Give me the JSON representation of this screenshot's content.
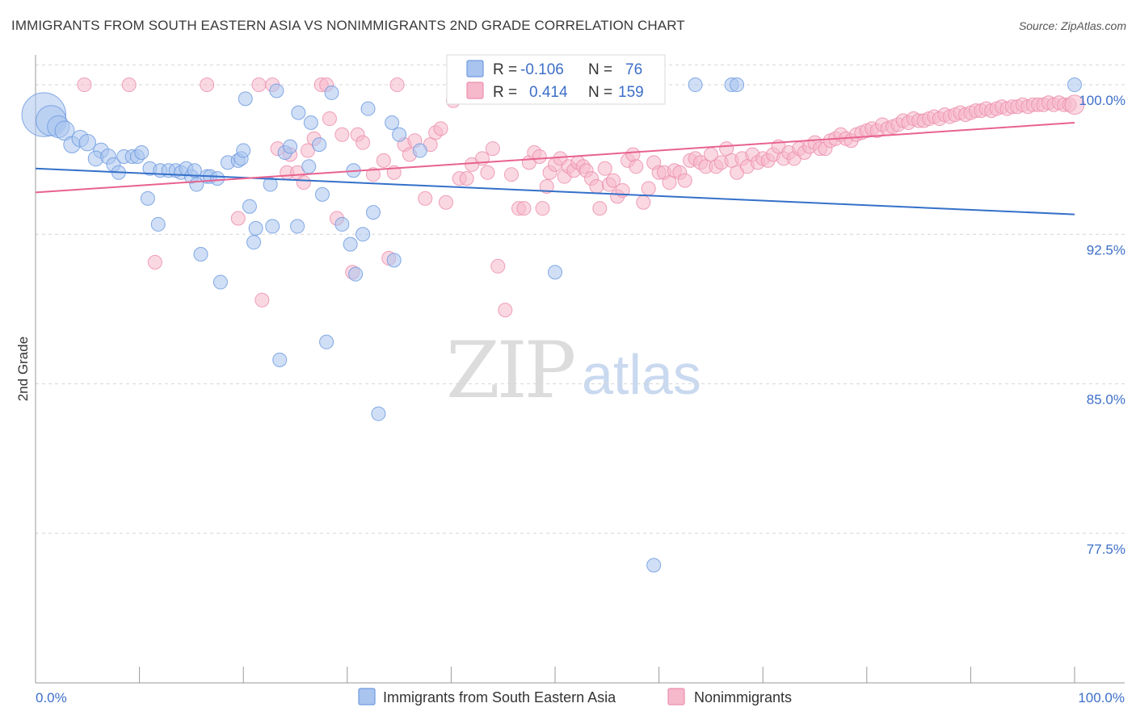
{
  "header": {
    "title": "IMMIGRANTS FROM SOUTH EASTERN ASIA VS NONIMMIGRANTS 2ND GRADE CORRELATION CHART",
    "source": "Source: ZipAtlas.com"
  },
  "watermark": {
    "part1": "ZIP",
    "part2": "atlas"
  },
  "stats": {
    "series1": {
      "r_label": "R =",
      "r_value": "-0.106",
      "n_label": "N =",
      "n_value": "76"
    },
    "series2": {
      "r_label": "R =",
      "r_value": "0.414",
      "n_label": "N =",
      "n_value": "159"
    }
  },
  "colors": {
    "series1_fill": "#a9c4ef",
    "series1_stroke": "#6f9be0",
    "series1_line": "#3470c9",
    "series2_fill": "#f6b8cb",
    "series2_stroke": "#ec8fae",
    "series2_line": "#e8628f",
    "tick_text": "#3d6fc9",
    "grid": "#d6d6d6"
  },
  "chart_data": {
    "type": "scatter",
    "title": "IMMIGRANTS FROM SOUTH EASTERN ASIA VS NONIMMIGRANTS 2ND GRADE CORRELATION CHART",
    "xlabel": "",
    "ylabel": "2nd Grade",
    "xlim": [
      0,
      100
    ],
    "ylim": [
      70.0,
      101.5
    ],
    "x_tick_labels": [
      "0.0%",
      "100.0%"
    ],
    "y_ticks": [
      77.5,
      85.0,
      92.5,
      100.0
    ],
    "y_tick_labels": [
      "77.5%",
      "85.0%",
      "92.5%",
      "100.0%"
    ],
    "grid": true,
    "legend_position": "bottom",
    "series": [
      {
        "name": "Immigrants from South Eastern Asia",
        "trend": {
          "x": [
            0,
            100
          ],
          "y": [
            95.8,
            93.5
          ]
        },
        "points": [
          [
            0.8,
            98.5,
            3.2
          ],
          [
            1.5,
            98.2,
            2.2
          ],
          [
            2.2,
            97.9,
            1.6
          ],
          [
            2.8,
            97.7,
            1.4
          ],
          [
            3.5,
            97.0,
            1.2
          ],
          [
            4.3,
            97.3,
            1.2
          ],
          [
            5.0,
            97.1,
            1.2
          ],
          [
            6.3,
            96.7,
            1.1
          ],
          [
            5.8,
            96.3,
            1.1
          ],
          [
            7.0,
            96.4,
            1.1
          ],
          [
            7.5,
            96.0,
            1.0
          ],
          [
            8.0,
            95.6,
            1.0
          ],
          [
            8.5,
            96.4,
            1.0
          ],
          [
            9.3,
            96.4,
            1.0
          ],
          [
            9.8,
            96.4,
            1.0
          ],
          [
            10.2,
            96.6,
            1.0
          ],
          [
            10.8,
            94.3,
            1.0
          ],
          [
            11.0,
            95.8,
            1.0
          ],
          [
            11.8,
            93.0,
            1.0
          ],
          [
            12.0,
            95.7,
            1.0
          ],
          [
            12.8,
            95.7,
            1.0
          ],
          [
            13.5,
            95.7,
            1.0
          ],
          [
            14.0,
            95.6,
            1.0
          ],
          [
            14.5,
            95.8,
            1.0
          ],
          [
            15.0,
            95.4,
            1.0
          ],
          [
            15.3,
            95.7,
            1.0
          ],
          [
            15.5,
            95.0,
            1.0
          ],
          [
            15.9,
            91.5,
            1.0
          ],
          [
            16.5,
            95.4,
            1.0
          ],
          [
            16.8,
            95.4,
            1.0
          ],
          [
            17.5,
            95.3,
            1.0
          ],
          [
            17.8,
            90.1,
            1.0
          ],
          [
            18.5,
            96.1,
            1.0
          ],
          [
            19.5,
            96.2,
            1.0
          ],
          [
            19.8,
            96.3,
            1.0
          ],
          [
            20.0,
            96.7,
            1.0
          ],
          [
            20.2,
            99.3,
            1.0
          ],
          [
            20.6,
            93.9,
            1.0
          ],
          [
            21.0,
            92.1,
            1.0
          ],
          [
            21.2,
            92.8,
            1.0
          ],
          [
            22.6,
            95.0,
            1.0
          ],
          [
            22.8,
            92.9,
            1.0
          ],
          [
            23.2,
            99.7,
            1.0
          ],
          [
            23.5,
            86.2,
            1.0
          ],
          [
            24.0,
            96.6,
            1.0
          ],
          [
            24.5,
            96.9,
            1.0
          ],
          [
            25.2,
            92.9,
            1.0
          ],
          [
            25.3,
            98.6,
            1.0
          ],
          [
            26.3,
            95.9,
            1.0
          ],
          [
            26.5,
            98.1,
            1.0
          ],
          [
            27.3,
            97.0,
            1.0
          ],
          [
            27.6,
            94.5,
            1.0
          ],
          [
            28.0,
            87.1,
            1.0
          ],
          [
            28.5,
            99.6,
            1.0
          ],
          [
            29.5,
            93.0,
            1.0
          ],
          [
            30.3,
            92.0,
            1.0
          ],
          [
            30.6,
            95.7,
            1.0
          ],
          [
            30.8,
            90.5,
            1.0
          ],
          [
            31.5,
            92.5,
            1.0
          ],
          [
            32.0,
            98.8,
            1.0
          ],
          [
            32.5,
            93.6,
            1.0
          ],
          [
            33.0,
            83.5,
            1.0
          ],
          [
            34.3,
            98.1,
            1.0
          ],
          [
            34.5,
            91.2,
            1.0
          ],
          [
            35.0,
            97.5,
            1.0
          ],
          [
            37.0,
            96.7,
            1.0
          ],
          [
            43.5,
            100.0,
            1.0
          ],
          [
            50.0,
            90.6,
            1.0
          ],
          [
            59.5,
            75.9,
            1.0
          ],
          [
            63.5,
            100.0,
            1.0
          ],
          [
            67.0,
            100.0,
            1.0
          ],
          [
            67.5,
            100.0,
            1.0
          ],
          [
            100.0,
            100.0,
            1.0
          ]
        ]
      },
      {
        "name": "Nonimmigrants",
        "trend": {
          "x": [
            0,
            100
          ],
          "y": [
            94.6,
            98.1
          ]
        },
        "points": [
          [
            4.7,
            100.0,
            1.0
          ],
          [
            9.0,
            100.0,
            1.0
          ],
          [
            11.5,
            91.1,
            1.0
          ],
          [
            16.5,
            100.0,
            1.0
          ],
          [
            19.5,
            93.3,
            1.0
          ],
          [
            21.5,
            100.0,
            1.0
          ],
          [
            21.8,
            89.2,
            1.0
          ],
          [
            22.8,
            100.0,
            1.0
          ],
          [
            23.3,
            96.8,
            1.0
          ],
          [
            24.2,
            95.6,
            1.0
          ],
          [
            24.5,
            96.5,
            1.0
          ],
          [
            25.2,
            95.6,
            1.0
          ],
          [
            25.8,
            95.1,
            1.0
          ],
          [
            26.2,
            96.7,
            1.0
          ],
          [
            26.8,
            97.3,
            1.0
          ],
          [
            27.5,
            100.0,
            1.0
          ],
          [
            28.0,
            100.0,
            1.0
          ],
          [
            28.3,
            98.3,
            1.0
          ],
          [
            29.0,
            93.3,
            1.0
          ],
          [
            29.5,
            97.5,
            1.0
          ],
          [
            30.5,
            90.6,
            1.0
          ],
          [
            31.0,
            97.5,
            1.0
          ],
          [
            31.5,
            97.1,
            1.0
          ],
          [
            32.5,
            95.5,
            1.0
          ],
          [
            33.5,
            96.2,
            1.0
          ],
          [
            34.0,
            91.3,
            1.0
          ],
          [
            34.5,
            95.6,
            1.0
          ],
          [
            34.8,
            100.0,
            1.0
          ],
          [
            35.5,
            97.0,
            1.0
          ],
          [
            36.0,
            96.5,
            1.0
          ],
          [
            36.5,
            97.2,
            1.0
          ],
          [
            37.5,
            94.3,
            1.0
          ],
          [
            38.0,
            97.0,
            1.0
          ],
          [
            38.5,
            97.6,
            1.0
          ],
          [
            39.0,
            97.8,
            1.0
          ],
          [
            39.5,
            94.1,
            1.0
          ],
          [
            40.2,
            99.2,
            1.0
          ],
          [
            40.8,
            95.3,
            1.0
          ],
          [
            41.5,
            95.3,
            1.0
          ],
          [
            42.0,
            96.0,
            1.0
          ],
          [
            43.0,
            96.3,
            1.0
          ],
          [
            43.5,
            95.6,
            1.0
          ],
          [
            44.0,
            96.8,
            1.0
          ],
          [
            44.5,
            90.9,
            1.0
          ],
          [
            45.2,
            88.7,
            1.0
          ],
          [
            45.8,
            95.5,
            1.0
          ],
          [
            46.5,
            93.8,
            1.0
          ],
          [
            47.0,
            93.8,
            1.0
          ],
          [
            47.5,
            96.1,
            1.0
          ],
          [
            48.0,
            96.6,
            1.0
          ],
          [
            48.5,
            96.4,
            1.0
          ],
          [
            48.8,
            93.8,
            1.0
          ],
          [
            49.2,
            94.9,
            1.0
          ],
          [
            49.5,
            95.6,
            1.0
          ],
          [
            50.0,
            96.0,
            1.0
          ],
          [
            50.5,
            96.3,
            1.0
          ],
          [
            50.9,
            95.4,
            1.0
          ],
          [
            51.3,
            95.9,
            1.0
          ],
          [
            51.8,
            95.7,
            1.0
          ],
          [
            52.2,
            96.1,
            1.0
          ],
          [
            52.7,
            95.9,
            1.0
          ],
          [
            53.0,
            95.7,
            1.0
          ],
          [
            53.5,
            95.3,
            1.0
          ],
          [
            54.0,
            94.9,
            1.0
          ],
          [
            54.3,
            93.8,
            1.0
          ],
          [
            54.8,
            95.8,
            1.0
          ],
          [
            55.2,
            95.0,
            1.0
          ],
          [
            55.6,
            95.2,
            1.0
          ],
          [
            56.0,
            94.4,
            1.0
          ],
          [
            56.5,
            94.7,
            1.0
          ],
          [
            57.0,
            96.2,
            1.0
          ],
          [
            57.5,
            96.5,
            1.0
          ],
          [
            57.8,
            95.9,
            1.0
          ],
          [
            58.5,
            94.1,
            1.0
          ],
          [
            59.0,
            94.8,
            1.0
          ],
          [
            59.5,
            96.1,
            1.0
          ],
          [
            60.0,
            95.6,
            1.0
          ],
          [
            60.5,
            95.6,
            1.0
          ],
          [
            61.0,
            95.1,
            1.0
          ],
          [
            61.5,
            95.7,
            1.0
          ],
          [
            62.0,
            95.6,
            1.0
          ],
          [
            62.5,
            95.2,
            1.0
          ],
          [
            63.0,
            96.2,
            1.0
          ],
          [
            63.5,
            96.3,
            1.0
          ],
          [
            64.0,
            96.1,
            1.0
          ],
          [
            64.5,
            95.9,
            1.0
          ],
          [
            65.0,
            96.5,
            1.0
          ],
          [
            65.5,
            95.9,
            1.0
          ],
          [
            66.0,
            96.1,
            1.0
          ],
          [
            66.5,
            96.8,
            1.0
          ],
          [
            67.0,
            96.2,
            1.0
          ],
          [
            67.5,
            95.6,
            1.0
          ],
          [
            68.0,
            96.3,
            1.0
          ],
          [
            68.5,
            95.9,
            1.0
          ],
          [
            69.0,
            96.5,
            1.0
          ],
          [
            69.5,
            96.1,
            1.0
          ],
          [
            70.0,
            96.3,
            1.0
          ],
          [
            70.5,
            96.2,
            1.0
          ],
          [
            71.0,
            96.5,
            1.0
          ],
          [
            71.5,
            96.9,
            1.0
          ],
          [
            72.0,
            96.3,
            1.0
          ],
          [
            72.5,
            96.6,
            1.0
          ],
          [
            73.0,
            96.3,
            1.0
          ],
          [
            73.5,
            96.8,
            1.0
          ],
          [
            74.0,
            96.6,
            1.0
          ],
          [
            74.5,
            96.9,
            1.0
          ],
          [
            75.0,
            97.1,
            1.0
          ],
          [
            75.5,
            96.8,
            1.0
          ],
          [
            76.0,
            96.8,
            1.0
          ],
          [
            76.5,
            97.2,
            1.0
          ],
          [
            77.0,
            97.3,
            1.0
          ],
          [
            77.5,
            97.5,
            1.0
          ],
          [
            78.0,
            97.3,
            1.0
          ],
          [
            78.5,
            97.2,
            1.0
          ],
          [
            79.0,
            97.5,
            1.0
          ],
          [
            79.5,
            97.6,
            1.0
          ],
          [
            80.0,
            97.7,
            1.0
          ],
          [
            80.5,
            97.8,
            1.0
          ],
          [
            81.0,
            97.7,
            1.0
          ],
          [
            81.5,
            98.0,
            1.0
          ],
          [
            82.0,
            97.8,
            1.0
          ],
          [
            82.5,
            97.9,
            1.0
          ],
          [
            83.0,
            98.0,
            1.0
          ],
          [
            83.5,
            98.2,
            1.0
          ],
          [
            84.0,
            98.1,
            1.0
          ],
          [
            84.5,
            98.3,
            1.0
          ],
          [
            85.0,
            98.2,
            1.0
          ],
          [
            85.5,
            98.2,
            1.0
          ],
          [
            86.0,
            98.3,
            1.0
          ],
          [
            86.5,
            98.4,
            1.0
          ],
          [
            87.0,
            98.3,
            1.0
          ],
          [
            87.5,
            98.5,
            1.0
          ],
          [
            88.0,
            98.4,
            1.0
          ],
          [
            88.5,
            98.5,
            1.0
          ],
          [
            89.0,
            98.6,
            1.0
          ],
          [
            89.5,
            98.5,
            1.0
          ],
          [
            90.0,
            98.6,
            1.0
          ],
          [
            90.5,
            98.7,
            1.0
          ],
          [
            91.0,
            98.7,
            1.0
          ],
          [
            91.5,
            98.8,
            1.0
          ],
          [
            92.0,
            98.7,
            1.0
          ],
          [
            92.5,
            98.8,
            1.0
          ],
          [
            93.0,
            98.9,
            1.0
          ],
          [
            93.5,
            98.8,
            1.0
          ],
          [
            94.0,
            98.9,
            1.0
          ],
          [
            94.5,
            98.9,
            1.0
          ],
          [
            95.0,
            99.0,
            1.0
          ],
          [
            95.5,
            98.9,
            1.0
          ],
          [
            96.0,
            99.0,
            1.0
          ],
          [
            96.5,
            99.0,
            1.0
          ],
          [
            97.0,
            99.0,
            1.0
          ],
          [
            97.5,
            99.1,
            1.0
          ],
          [
            98.0,
            99.0,
            1.0
          ],
          [
            98.5,
            99.1,
            1.0
          ],
          [
            99.0,
            99.0,
            1.0
          ],
          [
            99.5,
            99.0,
            1.0
          ],
          [
            100.0,
            99.0,
            1.4
          ]
        ]
      }
    ]
  }
}
